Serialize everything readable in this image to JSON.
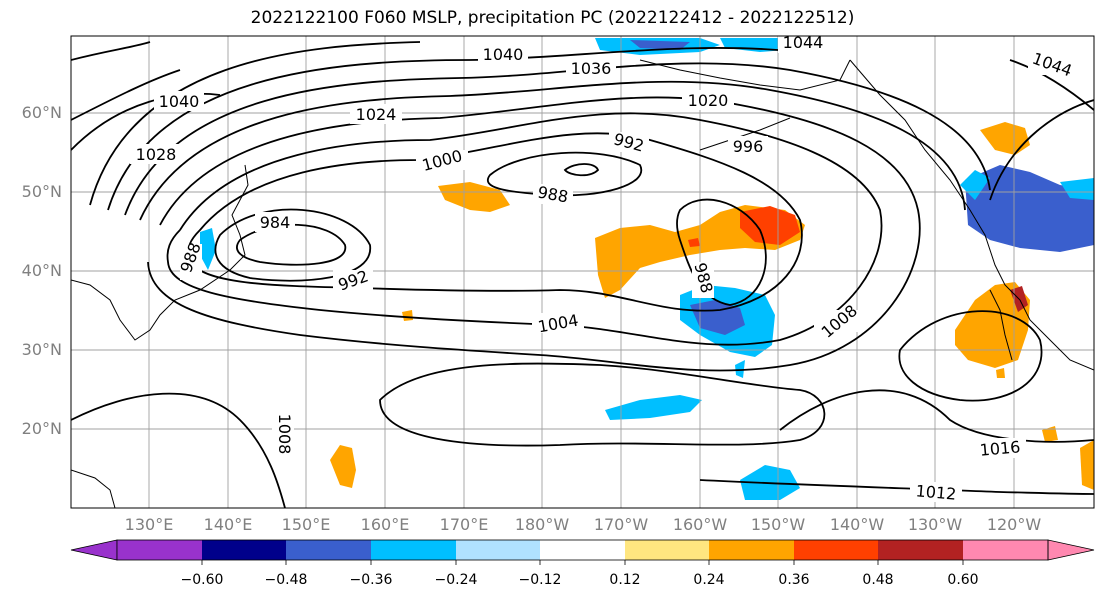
{
  "title": "2022122100 F060 MSLP, precipitation PC (2022122412 - 2022122512)",
  "lat_labels": [
    "60°N",
    "50°N",
    "40°N",
    "30°N",
    "20°N"
  ],
  "lon_labels": [
    "130°E",
    "140°E",
    "150°E",
    "160°E",
    "170°E",
    "180°W",
    "170°W",
    "160°W",
    "150°W",
    "140°W",
    "130°W",
    "120°W"
  ],
  "isobar_labels": [
    "1040",
    "1036",
    "1040",
    "1044",
    "1044",
    "1024",
    "1020",
    "1028",
    "996",
    "992",
    "1000",
    "988",
    "984",
    "988",
    "992",
    "988",
    "1004",
    "1008",
    "1008",
    "1016",
    "1012"
  ],
  "colorbar": {
    "ticks": [
      "−0.60",
      "−0.48",
      "−0.36",
      "−0.24",
      "−0.12",
      "0.12",
      "0.24",
      "0.36",
      "0.48",
      "0.60"
    ],
    "colors": [
      "#9932cc",
      "#00008b",
      "#3a5fcd",
      "#00bfff",
      "#b0e2ff",
      "#ffffff",
      "#ffe680",
      "#ffa500",
      "#ff4000",
      "#b22222",
      "#ff88b0"
    ]
  }
}
